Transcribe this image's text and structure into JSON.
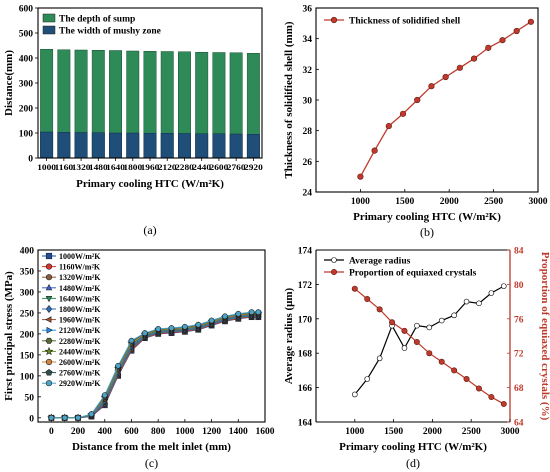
{
  "chart_data": [
    {
      "id": "a",
      "type": "bar",
      "panel_label": "(a)",
      "xlabel": "Primary cooling HTC (W/m²K)",
      "ylabel": "Distance(mm)",
      "ylim": [
        0,
        600
      ],
      "yticks": [
        0,
        100,
        200,
        300,
        400,
        500,
        600
      ],
      "categories": [
        "1000",
        "1160",
        "1320",
        "1480",
        "1640",
        "1800",
        "1960",
        "2120",
        "2280",
        "2440",
        "2600",
        "2760",
        "2920"
      ],
      "legend_position": "top-left",
      "series": [
        {
          "name": "The depth of sump",
          "color": "#2e8b57",
          "values": [
            435,
            433,
            432,
            431,
            430,
            428,
            427,
            426,
            425,
            423,
            422,
            421,
            419
          ]
        },
        {
          "name": "The width of mushy zone",
          "color": "#1f4e79",
          "values": [
            104,
            103,
            102,
            101,
            100,
            100,
            99,
            99,
            98,
            97,
            97,
            96,
            95
          ]
        }
      ]
    },
    {
      "id": "b",
      "type": "line",
      "panel_label": "(b)",
      "xlabel": "Primary cooling HTC (W/m²K)",
      "ylabel": "Thickness of solidified shell (mm)",
      "xlim": [
        500,
        3000
      ],
      "xticks": [
        1000,
        1500,
        2000,
        2500,
        3000
      ],
      "ylim": [
        24,
        36
      ],
      "yticks": [
        24,
        26,
        28,
        30,
        32,
        34,
        36
      ],
      "legend_position": "top-left",
      "series": [
        {
          "name": "Thickness of solidified shell",
          "color": "#c0392b",
          "x": [
            1000,
            1160,
            1320,
            1480,
            1640,
            1800,
            1960,
            2120,
            2280,
            2440,
            2600,
            2760,
            2920
          ],
          "y": [
            25.0,
            26.7,
            28.3,
            29.1,
            30.0,
            30.9,
            31.5,
            32.1,
            32.7,
            33.4,
            33.9,
            34.5,
            35.1
          ]
        }
      ]
    },
    {
      "id": "c",
      "type": "line",
      "panel_label": "(c)",
      "xlabel": "Distance from the melt inlet (mm)",
      "ylabel": "First principal stress (MPa)",
      "xlim": [
        -100,
        1600
      ],
      "xticks": [
        0,
        200,
        400,
        600,
        800,
        1000,
        1200,
        1400,
        1600
      ],
      "ylim": [
        -10,
        400
      ],
      "yticks": [
        0,
        50,
        100,
        150,
        200,
        250,
        300,
        350,
        400
      ],
      "legend_position": "top-left",
      "x": [
        0,
        100,
        200,
        300,
        400,
        500,
        600,
        700,
        800,
        900,
        1000,
        1100,
        1200,
        1300,
        1400,
        1500,
        1550
      ],
      "series": [
        {
          "name": "1000W/m²K",
          "color": "#1f4e9c",
          "marker": "square",
          "y": [
            0,
            0,
            0,
            3,
            30,
            100,
            160,
            190,
            200,
            202,
            205,
            210,
            220,
            230,
            236,
            240,
            240
          ]
        },
        {
          "name": "1160W/m²K",
          "color": "#d9342b",
          "marker": "circle",
          "y": [
            0,
            0,
            0,
            3,
            32,
            102,
            162,
            191,
            201,
            203,
            206,
            211,
            221,
            231,
            237,
            241,
            241
          ]
        },
        {
          "name": "1320W/m²K",
          "color": "#8b5a3c",
          "marker": "circle",
          "y": [
            0,
            0,
            0,
            4,
            34,
            104,
            164,
            192,
            202,
            204,
            207,
            212,
            222,
            232,
            238,
            242,
            242
          ]
        },
        {
          "name": "1480W/m²K",
          "color": "#3a5fcd",
          "marker": "triangle",
          "y": [
            0,
            0,
            0,
            4,
            36,
            106,
            166,
            193,
            203,
            205,
            208,
            213,
            223,
            233,
            239,
            243,
            243
          ]
        },
        {
          "name": "1640W/m²K",
          "color": "#2e8b57",
          "marker": "triangle-down",
          "y": [
            0,
            0,
            0,
            5,
            38,
            108,
            168,
            194,
            204,
            206,
            209,
            214,
            224,
            234,
            240,
            244,
            244
          ]
        },
        {
          "name": "1800W/m²K",
          "color": "#2b6cb0",
          "marker": "diamond",
          "y": [
            0,
            0,
            0,
            5,
            40,
            110,
            170,
            195,
            205,
            207,
            210,
            215,
            225,
            235,
            241,
            245,
            245
          ]
        },
        {
          "name": "1960W/m²K",
          "color": "#a0522d",
          "marker": "triangle-left",
          "y": [
            0,
            0,
            0,
            6,
            42,
            112,
            172,
            196,
            206,
            208,
            211,
            216,
            226,
            236,
            242,
            246,
            246
          ]
        },
        {
          "name": "2120W/m²K",
          "color": "#1e90ff",
          "marker": "triangle-right",
          "y": [
            0,
            0,
            0,
            6,
            44,
            114,
            174,
            197,
            207,
            209,
            212,
            217,
            227,
            237,
            243,
            247,
            247
          ]
        },
        {
          "name": "2280W/m²K",
          "color": "#556b2f",
          "marker": "hexagon",
          "y": [
            0,
            0,
            0,
            7,
            46,
            116,
            176,
            198,
            208,
            210,
            213,
            218,
            228,
            238,
            244,
            248,
            248
          ]
        },
        {
          "name": "2440W/m²K",
          "color": "#6b8e23",
          "marker": "star",
          "y": [
            0,
            0,
            0,
            7,
            48,
            118,
            178,
            199,
            209,
            211,
            214,
            219,
            229,
            239,
            245,
            249,
            249
          ]
        },
        {
          "name": "2600W/m²K",
          "color": "#cd853f",
          "marker": "circle",
          "y": [
            0,
            0,
            0,
            8,
            50,
            120,
            180,
            200,
            210,
            212,
            215,
            220,
            230,
            240,
            246,
            250,
            250
          ]
        },
        {
          "name": "2760W/m²K",
          "color": "#2f4f4f",
          "marker": "pentagon",
          "y": [
            0,
            0,
            0,
            8,
            52,
            122,
            182,
            201,
            211,
            213,
            216,
            221,
            231,
            241,
            247,
            251,
            251
          ]
        },
        {
          "name": "2920W/m²K",
          "color": "#4aa3c8",
          "marker": "circle",
          "y": [
            0,
            0,
            0,
            9,
            54,
            124,
            184,
            202,
            212,
            214,
            217,
            222,
            232,
            242,
            248,
            252,
            252
          ]
        }
      ]
    },
    {
      "id": "d",
      "type": "line",
      "panel_label": "(d)",
      "xlabel": "Primary cooling HTC (W/m²K)",
      "ylabel": "Average radius (μm)",
      "ylabel_right": "Proportion of equiaxed crystals (%)",
      "xlim": [
        500,
        3000
      ],
      "xticks": [
        1000,
        1500,
        2000,
        2500,
        3000
      ],
      "ylim": [
        164,
        174
      ],
      "yticks": [
        164,
        166,
        168,
        170,
        172,
        174
      ],
      "ylim_right": [
        64,
        84
      ],
      "yticks_right": [
        64,
        68,
        72,
        76,
        80,
        84
      ],
      "legend_position": "top-left",
      "right_axis_color": "#c0392b",
      "x": [
        1000,
        1160,
        1320,
        1480,
        1640,
        1800,
        1960,
        2120,
        2280,
        2440,
        2600,
        2760,
        2920
      ],
      "series": [
        {
          "name": "Average radius",
          "color": "#000000",
          "axis": "left",
          "y": [
            165.6,
            166.5,
            167.7,
            169.6,
            168.3,
            169.6,
            169.5,
            169.9,
            170.2,
            171.0,
            170.9,
            171.5,
            171.9
          ]
        },
        {
          "name": "Proportion of equiaxed crystals",
          "color": "#c0392b",
          "axis": "right",
          "y": [
            79.5,
            78.3,
            77.1,
            75.6,
            74.6,
            73.3,
            72.0,
            71.0,
            70.0,
            69.0,
            67.9,
            66.9,
            66.1
          ]
        }
      ]
    }
  ]
}
